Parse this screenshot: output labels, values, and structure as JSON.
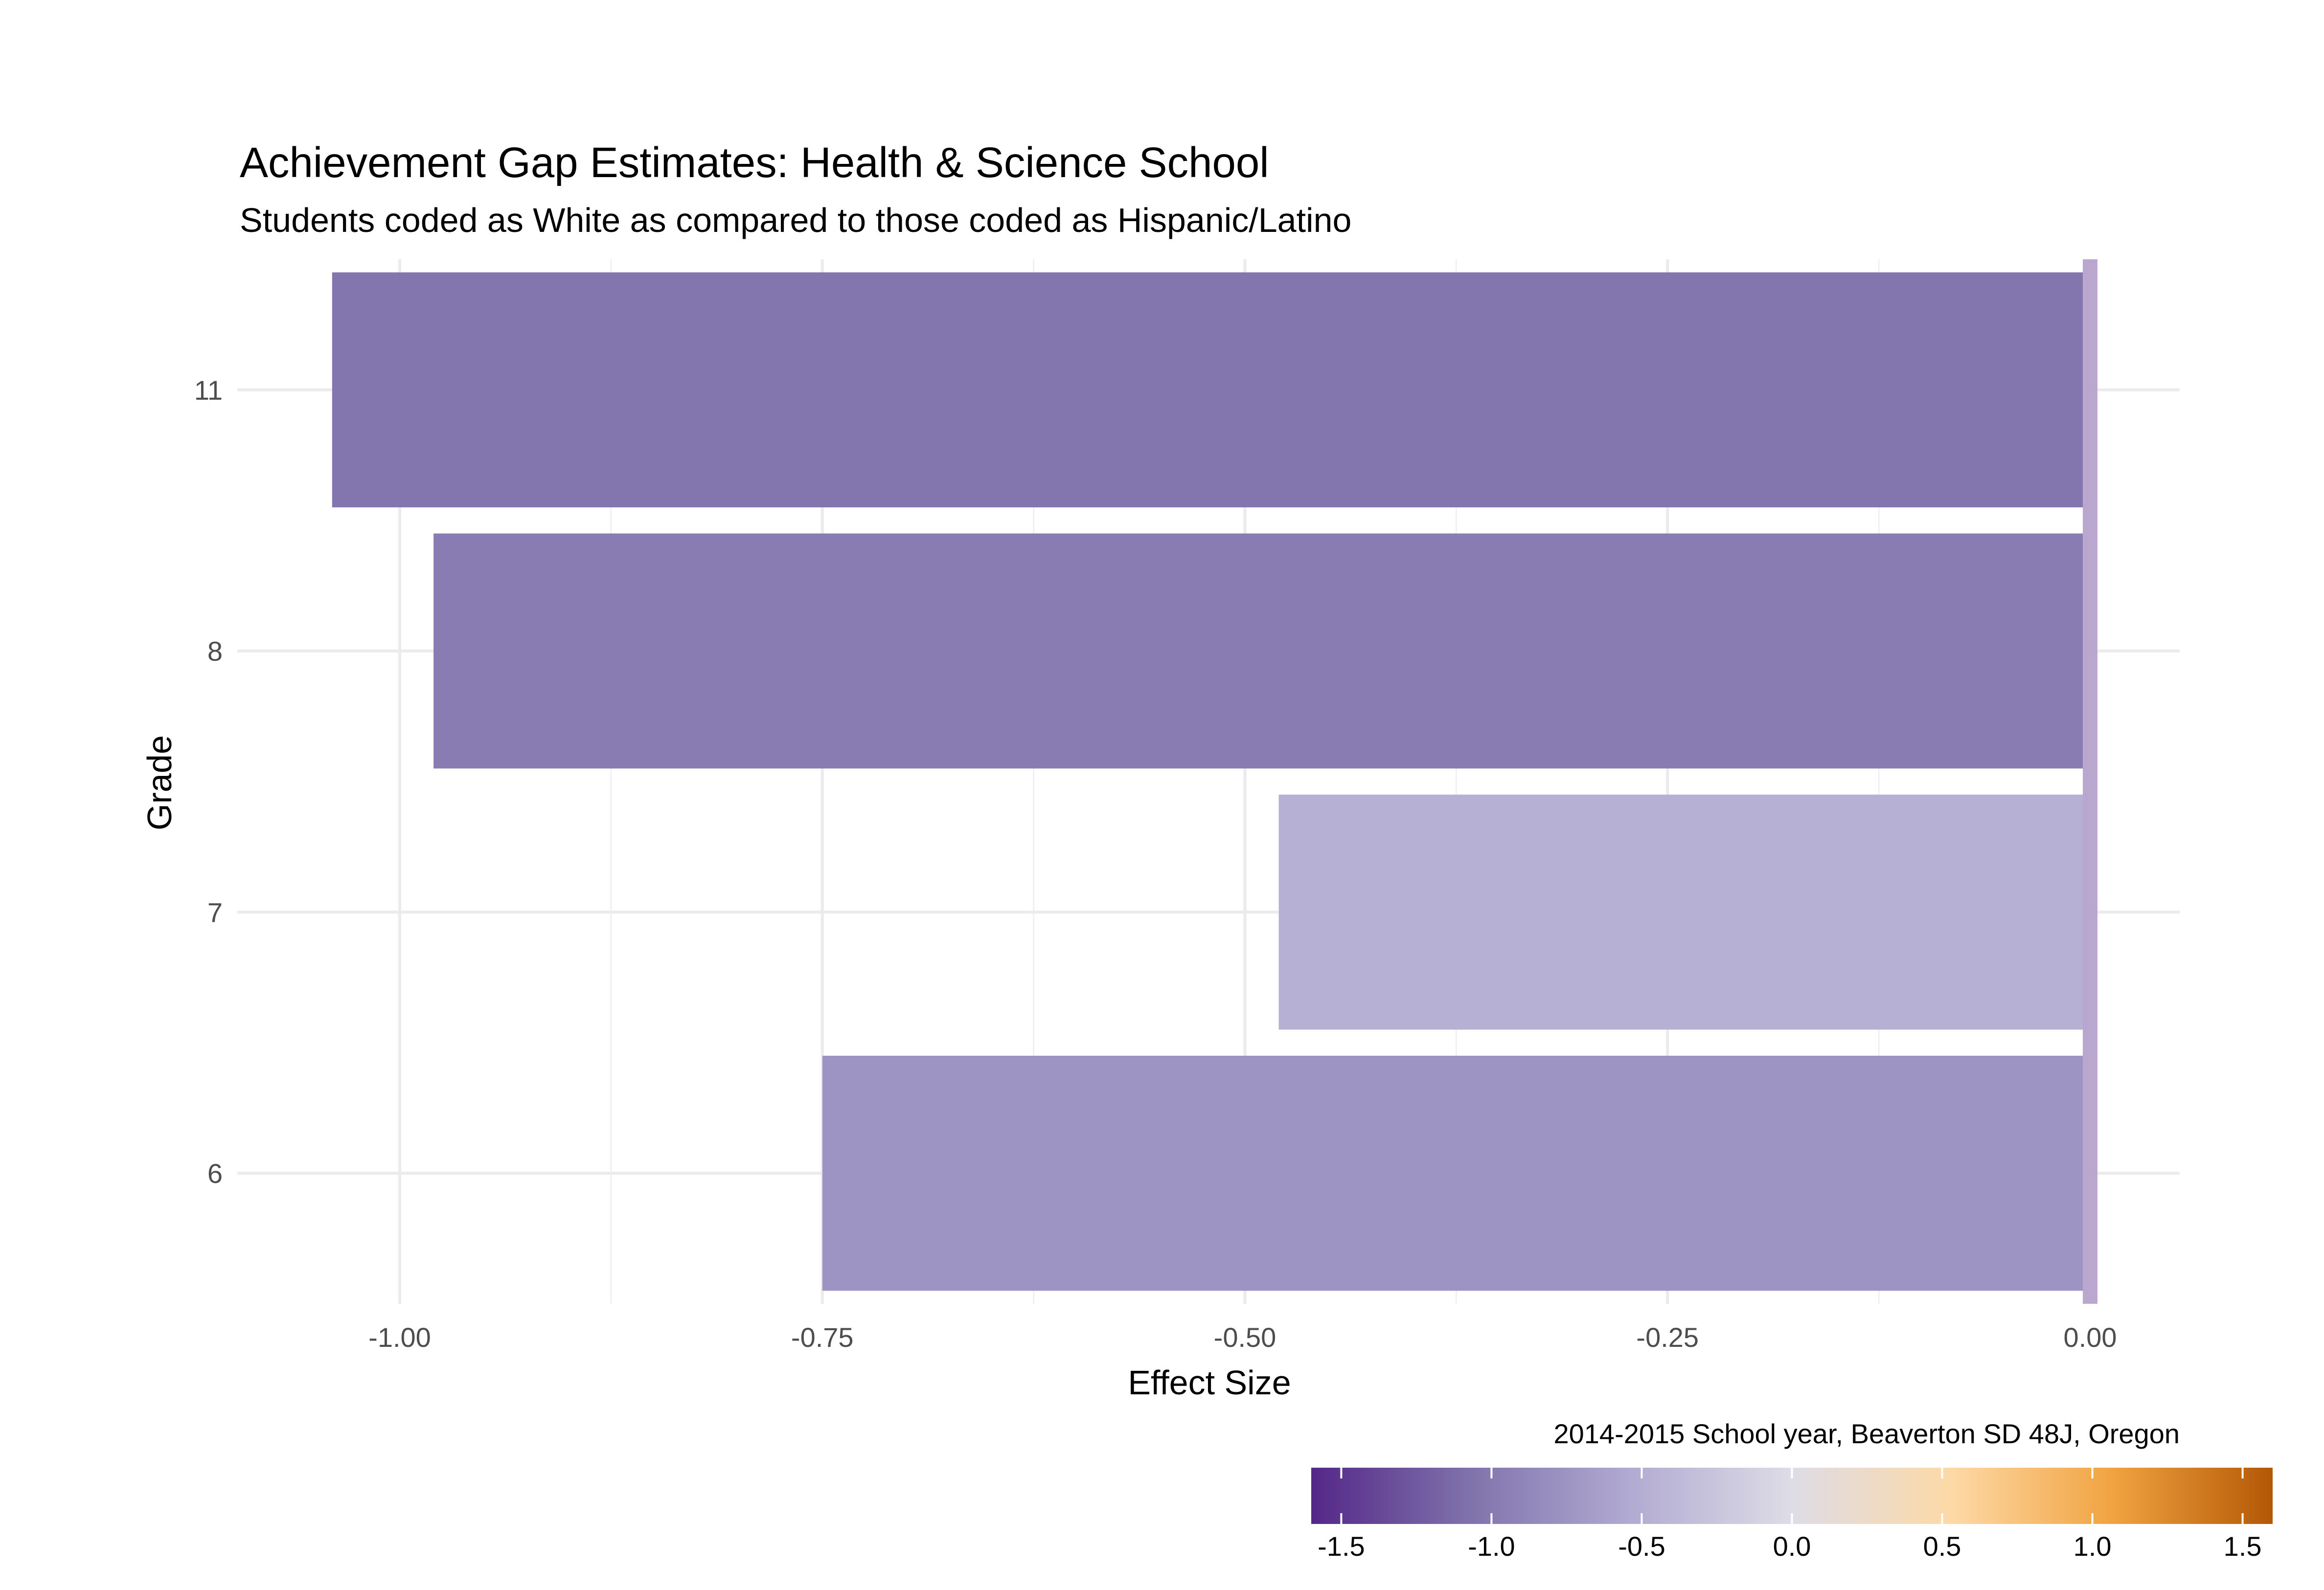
{
  "chart_data": {
    "type": "bar",
    "orientation": "horizontal",
    "title": "Achievement Gap Estimates: Health & Science School",
    "subtitle": "Students coded as White as compared to those coded as Hispanic/Latino",
    "xlabel": "Effect Size",
    "ylabel": "Grade",
    "caption": "2014-2015 School year, Beaverton SD 48J, Oregon",
    "categories": [
      "6",
      "7",
      "8",
      "11"
    ],
    "values": [
      -0.75,
      -0.48,
      -0.98,
      -1.04
    ],
    "xlim": [
      -1.08,
      0.05
    ],
    "x_ticks": [
      -1.0,
      -0.75,
      -0.5,
      -0.25,
      0.0
    ],
    "x_tick_labels": [
      "-1.00",
      "-0.75",
      "-0.50",
      "-0.25",
      "0.00"
    ],
    "reference_line": 0,
    "reference_line_color": "#b9a7cf",
    "grid": true,
    "legend": {
      "type": "colorbar",
      "placement": "bottom-right",
      "range": [
        -1.6,
        1.6
      ],
      "ticks": [
        -1.5,
        -1.0,
        -0.5,
        0.0,
        0.5,
        1.0,
        1.5
      ],
      "tick_labels": [
        "-1.5",
        "-1.0",
        "-0.5",
        "0.0",
        "0.5",
        "1.0",
        "1.5"
      ],
      "colors": [
        "#542788",
        "#8073ac",
        "#b2abd2",
        "#dedce6",
        "#fdd9a6",
        "#f1a340",
        "#b35806"
      ]
    }
  }
}
